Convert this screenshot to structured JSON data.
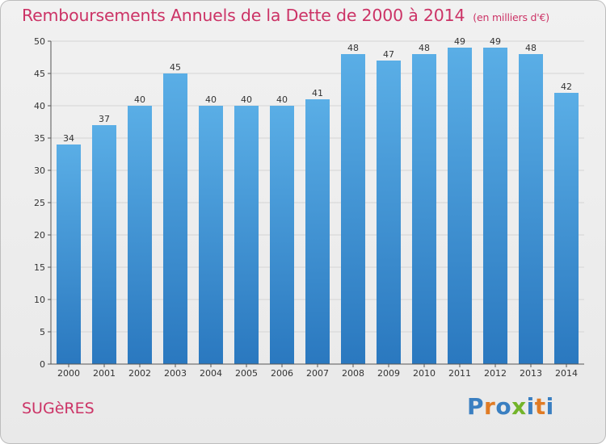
{
  "page": {
    "title": "Remboursements Annuels de la Dette de 2000 à 2014",
    "unit_label": "(en milliers d'€)",
    "town": "SUGèRES",
    "logo": {
      "text": "Proxiti",
      "letters": [
        "P",
        "r",
        "o",
        "x",
        "i",
        "t",
        "i"
      ],
      "colors": [
        "#3a7fc1",
        "#e07b24",
        "#3a7fc1",
        "#73b42a",
        "#3a7fc1",
        "#e07b24",
        "#3a7fc1"
      ]
    },
    "colors": {
      "title": "#cc3366",
      "bar_top": "#5aaee6",
      "bar_bottom": "#2a78bf",
      "grid": "#d4d4d4"
    }
  },
  "chart_data": {
    "type": "bar",
    "title": "Remboursements Annuels de la Dette de 2000 à 2014",
    "subtitle": "(en milliers d'€)",
    "xlabel": "",
    "ylabel": "",
    "ylim": [
      0,
      50
    ],
    "ytick_step": 5,
    "grid": true,
    "categories": [
      "2000",
      "2001",
      "2002",
      "2003",
      "2004",
      "2005",
      "2006",
      "2007",
      "2008",
      "2009",
      "2010",
      "2011",
      "2012",
      "2013",
      "2014"
    ],
    "values": [
      34,
      37,
      40,
      45,
      40,
      40,
      40,
      41,
      48,
      47,
      48,
      49,
      49,
      48,
      42
    ]
  }
}
